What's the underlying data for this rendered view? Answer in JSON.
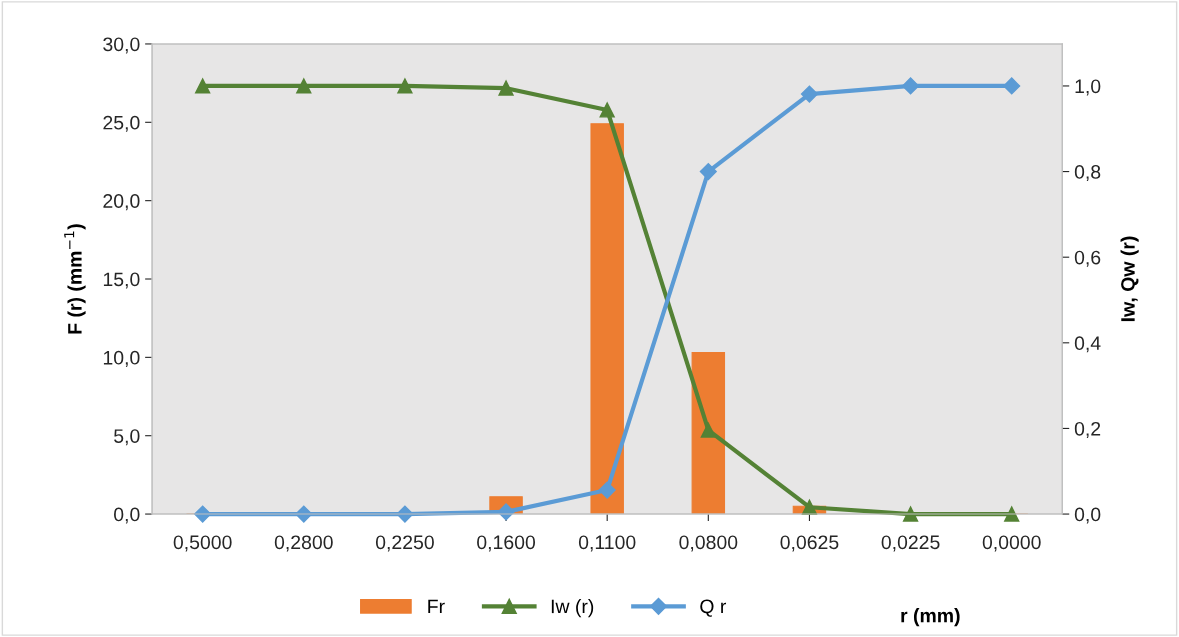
{
  "chart_data": {
    "type": "bar",
    "categories": [
      "0,5000",
      "0,2800",
      "0,2250",
      "0,1600",
      "0,1100",
      "0,0800",
      "0,0625",
      "0,0225",
      "0,0000"
    ],
    "series": [
      {
        "name": "Fr",
        "color": "#ed7d31",
        "values": [
          0,
          0,
          0,
          1.1,
          24.9,
          10.3,
          0.5,
          0,
          0
        ]
      },
      {
        "name": "Iw (r)",
        "type": "line",
        "axis": "y2",
        "marker": "triangle",
        "color": "#548235",
        "values": [
          1.0,
          1.0,
          1.0,
          0.995,
          0.944,
          0.196,
          0.016,
          0,
          0
        ]
      },
      {
        "name": "Q r",
        "type": "line",
        "axis": "y2",
        "marker": "diamond",
        "color": "#5b9bd5",
        "values": [
          0,
          0,
          0,
          0.005,
          0.056,
          0.8,
          0.981,
          1.0,
          1.0
        ]
      }
    ],
    "xlabel": "r (mm)",
    "ylabel": "F (r) (mm$^{−1}$)",
    "y2label": "Iw, Qw (r)",
    "ylim": [
      0,
      30
    ],
    "yticks": [
      {
        "value": 0,
        "label": "0,0"
      },
      {
        "value": 5,
        "label": "5,0"
      },
      {
        "value": 10,
        "label": "10,0"
      },
      {
        "value": 15,
        "label": "15,0"
      },
      {
        "value": 20,
        "label": "20,0"
      },
      {
        "value": 25,
        "label": "25,0"
      },
      {
        "value": 30,
        "label": "30,0"
      }
    ],
    "y2lim": [
      0,
      1.0981
    ],
    "y2ticks": [
      {
        "value": 0,
        "label": "0,0"
      },
      {
        "value": 0.2,
        "label": "0,2"
      },
      {
        "value": 0.4,
        "label": "0,4"
      },
      {
        "value": 0.6,
        "label": "0,6"
      },
      {
        "value": 0.8,
        "label": "0,8"
      },
      {
        "value": 1.0,
        "label": "1,0"
      }
    ],
    "grid": false,
    "legend": "bottom"
  }
}
